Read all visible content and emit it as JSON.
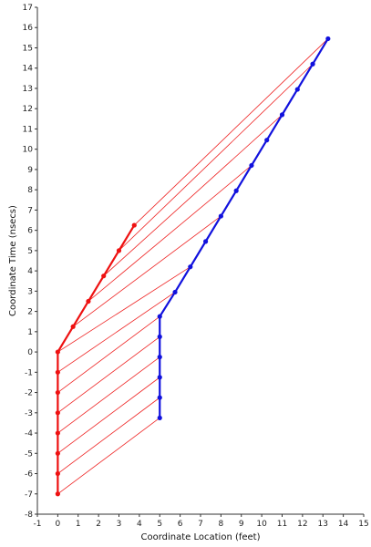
{
  "chart_data": {
    "type": "line",
    "xlabel": "Coordinate Location (feet)",
    "ylabel": "Coordinate Time (nsecs)",
    "xlim": [
      -1,
      15
    ],
    "ylim": [
      -8,
      17
    ],
    "x_ticks": [
      -1,
      0,
      1,
      2,
      3,
      4,
      5,
      6,
      7,
      8,
      9,
      10,
      11,
      12,
      13,
      14,
      15
    ],
    "y_ticks": [
      -8,
      -7,
      -6,
      -5,
      -4,
      -3,
      -2,
      -1,
      0,
      1,
      2,
      3,
      4,
      5,
      6,
      7,
      8,
      9,
      10,
      11,
      12,
      13,
      14,
      15,
      16,
      17
    ],
    "grid": false,
    "colors": {
      "red": "#ee1111",
      "blue": "#1111dd",
      "signal": "#ee2222",
      "axis": "#333333"
    },
    "series": [
      {
        "color": "red",
        "points": [
          [
            0,
            -7
          ],
          [
            0,
            -6
          ],
          [
            0,
            -5
          ],
          [
            0,
            -4
          ],
          [
            0,
            -3
          ],
          [
            0,
            -2
          ],
          [
            0,
            -1
          ],
          [
            0,
            0
          ],
          [
            0.75,
            1.25
          ],
          [
            1.5,
            2.5
          ],
          [
            2.25,
            3.75
          ],
          [
            3,
            5
          ],
          [
            3.75,
            6.25
          ]
        ]
      },
      {
        "color": "blue",
        "points": [
          [
            5,
            -3.25
          ],
          [
            5,
            -2.25
          ],
          [
            5,
            -1.25
          ],
          [
            5,
            -0.25
          ],
          [
            5,
            0.75
          ],
          [
            5,
            1.75
          ],
          [
            5.75,
            2.95
          ],
          [
            6.5,
            4.2
          ],
          [
            7.25,
            5.45
          ],
          [
            8,
            6.7
          ],
          [
            8.75,
            7.95
          ],
          [
            9.5,
            9.2
          ],
          [
            10.25,
            10.45
          ],
          [
            11,
            11.7
          ],
          [
            11.75,
            12.95
          ],
          [
            12.5,
            14.2
          ],
          [
            13.25,
            15.45
          ]
        ]
      }
    ],
    "signal_lines": [
      [
        [
          0,
          -7
        ],
        [
          5,
          -3.25
        ]
      ],
      [
        [
          0,
          -6
        ],
        [
          5,
          -2.25
        ]
      ],
      [
        [
          0,
          -5
        ],
        [
          5,
          -1.25
        ]
      ],
      [
        [
          0,
          -4
        ],
        [
          5,
          -0.25
        ]
      ],
      [
        [
          0,
          -3
        ],
        [
          5,
          0.75
        ]
      ],
      [
        [
          0,
          -2
        ],
        [
          5,
          1.75
        ]
      ],
      [
        [
          0,
          -1
        ],
        [
          5.75,
          2.95
        ]
      ],
      [
        [
          0,
          0
        ],
        [
          6.5,
          4.2
        ]
      ],
      [
        [
          0.75,
          1.25
        ],
        [
          8,
          6.7
        ]
      ],
      [
        [
          1.5,
          2.5
        ],
        [
          9.5,
          9.2
        ]
      ],
      [
        [
          2.25,
          3.75
        ],
        [
          11,
          11.7
        ]
      ],
      [
        [
          3,
          5
        ],
        [
          12.5,
          14.2
        ]
      ],
      [
        [
          3.75,
          6.25
        ],
        [
          13.25,
          15.45
        ]
      ]
    ]
  }
}
